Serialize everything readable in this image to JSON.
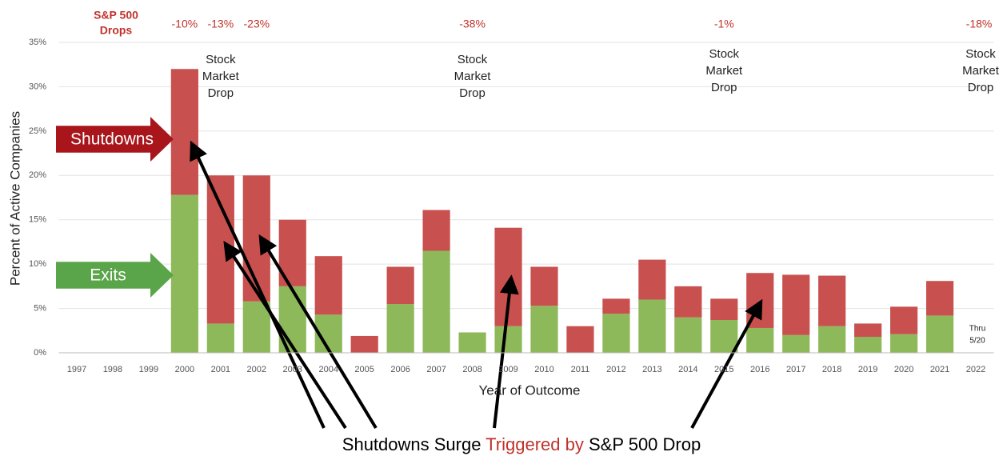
{
  "chart_data": {
    "type": "stacked_bar",
    "ylabel": "Percent of Active Companies",
    "xlabel": "Year of Outcome",
    "categories": [
      "1997",
      "1998",
      "1999",
      "2000",
      "2001",
      "2002",
      "2003",
      "2004",
      "2005",
      "2006",
      "2007",
      "2008",
      "2009",
      "2010",
      "2011",
      "2012",
      "2013",
      "2014",
      "2015",
      "2016",
      "2017",
      "2018",
      "2019",
      "2020",
      "2021",
      "2022"
    ],
    "series": [
      {
        "name": "Exits",
        "color": "#8db95a",
        "values": [
          null,
          null,
          null,
          17.8,
          3.3,
          5.8,
          7.5,
          4.3,
          0,
          5.5,
          11.5,
          2.3,
          3.0,
          5.3,
          0,
          4.4,
          6.0,
          4.0,
          3.7,
          2.8,
          2.0,
          3.0,
          1.8,
          2.1,
          4.2,
          null
        ]
      },
      {
        "name": "Shutdowns",
        "color": "#c8504e",
        "values": [
          null,
          null,
          null,
          14.2,
          16.7,
          14.2,
          7.5,
          6.6,
          1.9,
          4.2,
          4.6,
          0,
          11.1,
          4.4,
          3.0,
          1.7,
          4.5,
          3.5,
          2.4,
          6.2,
          6.8,
          5.7,
          1.5,
          3.1,
          3.9,
          null
        ]
      }
    ],
    "ylim": [
      0,
      35
    ],
    "yticks": [
      {
        "value": 0,
        "label": "0%"
      },
      {
        "value": 5,
        "label": "5%"
      },
      {
        "value": 10,
        "label": "10%"
      },
      {
        "value": 15,
        "label": "15%"
      },
      {
        "value": 20,
        "label": "20%"
      },
      {
        "value": 25,
        "label": "25%"
      },
      {
        "value": 30,
        "label": "30%"
      },
      {
        "value": 35,
        "label": "35%"
      }
    ],
    "grid": true,
    "drops_header": [
      "S&P 500",
      "Drops"
    ],
    "drops": [
      {
        "category": "2000",
        "label": "-10%"
      },
      {
        "category": "2001",
        "label": "-13%"
      },
      {
        "category": "2002",
        "label": "-23%"
      },
      {
        "category": "2008",
        "label": "-38%"
      },
      {
        "category": "2015",
        "label": "-1%"
      },
      {
        "category": "2022",
        "label": "-18%"
      }
    ],
    "market_drops": [
      {
        "category": "2001",
        "lines": [
          "Stock",
          "Market",
          "Drop"
        ]
      },
      {
        "category": "2008",
        "lines": [
          "Stock",
          "Market",
          "Drop"
        ]
      },
      {
        "category": "2015",
        "lines": [
          "Stock",
          "Market",
          "Drop"
        ]
      },
      {
        "category": "2022",
        "lines": [
          "Stock",
          "Market",
          "Drop"
        ]
      }
    ],
    "note": [
      "Thru",
      "5/20"
    ],
    "caption": [
      "Shutdowns Surge ",
      "Triggered by",
      " S&P 500 Drop"
    ]
  }
}
